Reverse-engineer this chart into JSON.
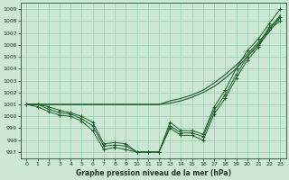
{
  "title": "Graphe pression niveau de la mer (hPa)",
  "bg_color": "#cce8d4",
  "grid_color": "#99ccaa",
  "line_color": "#1a5c28",
  "xlim": [
    -0.5,
    23.5
  ],
  "ylim": [
    996.5,
    1009.5
  ],
  "yticks": [
    997,
    998,
    999,
    1000,
    1001,
    1002,
    1003,
    1004,
    1005,
    1006,
    1007,
    1008,
    1009
  ],
  "xticks": [
    0,
    1,
    2,
    3,
    4,
    5,
    6,
    7,
    8,
    9,
    10,
    11,
    12,
    13,
    14,
    15,
    16,
    17,
    18,
    19,
    20,
    21,
    22,
    23
  ],
  "y_jagged1": [
    1001.0,
    1001.0,
    1000.8,
    1000.5,
    1000.3,
    1000.0,
    999.5,
    997.7,
    997.8,
    997.7,
    997.0,
    997.0,
    997.0,
    999.5,
    998.8,
    998.8,
    998.5,
    1000.8,
    1002.2,
    1004.0,
    1005.5,
    1006.5,
    1007.8,
    1009.0
  ],
  "y_jagged2": [
    1001.0,
    1001.0,
    1000.6,
    1000.3,
    1000.2,
    999.8,
    999.2,
    997.5,
    997.6,
    997.5,
    997.0,
    997.0,
    997.0,
    999.2,
    998.6,
    998.6,
    998.3,
    1000.5,
    1001.8,
    1003.5,
    1005.0,
    1006.0,
    1007.5,
    1008.3
  ],
  "y_jagged3": [
    1001.0,
    1000.8,
    1000.4,
    1000.1,
    1000.0,
    999.6,
    998.8,
    997.2,
    997.4,
    997.2,
    997.0,
    997.0,
    997.0,
    999.0,
    998.4,
    998.4,
    998.0,
    1000.2,
    1001.5,
    1003.2,
    1004.7,
    1005.8,
    1007.3,
    1008.0
  ],
  "y_smooth1": [
    1001.0,
    1001.0,
    1001.0,
    1001.0,
    1001.0,
    1001.0,
    1001.0,
    1001.0,
    1001.0,
    1001.0,
    1001.0,
    1001.0,
    1001.0,
    1001.3,
    1001.5,
    1001.8,
    1002.2,
    1002.8,
    1003.5,
    1004.3,
    1005.2,
    1006.2,
    1007.3,
    1008.5
  ],
  "y_smooth2": [
    1001.0,
    1001.0,
    1001.0,
    1001.0,
    1001.0,
    1001.0,
    1001.0,
    1001.0,
    1001.0,
    1001.0,
    1001.0,
    1001.0,
    1001.0,
    1001.1,
    1001.3,
    1001.6,
    1002.0,
    1002.5,
    1003.2,
    1004.0,
    1005.0,
    1006.0,
    1007.1,
    1008.3
  ]
}
